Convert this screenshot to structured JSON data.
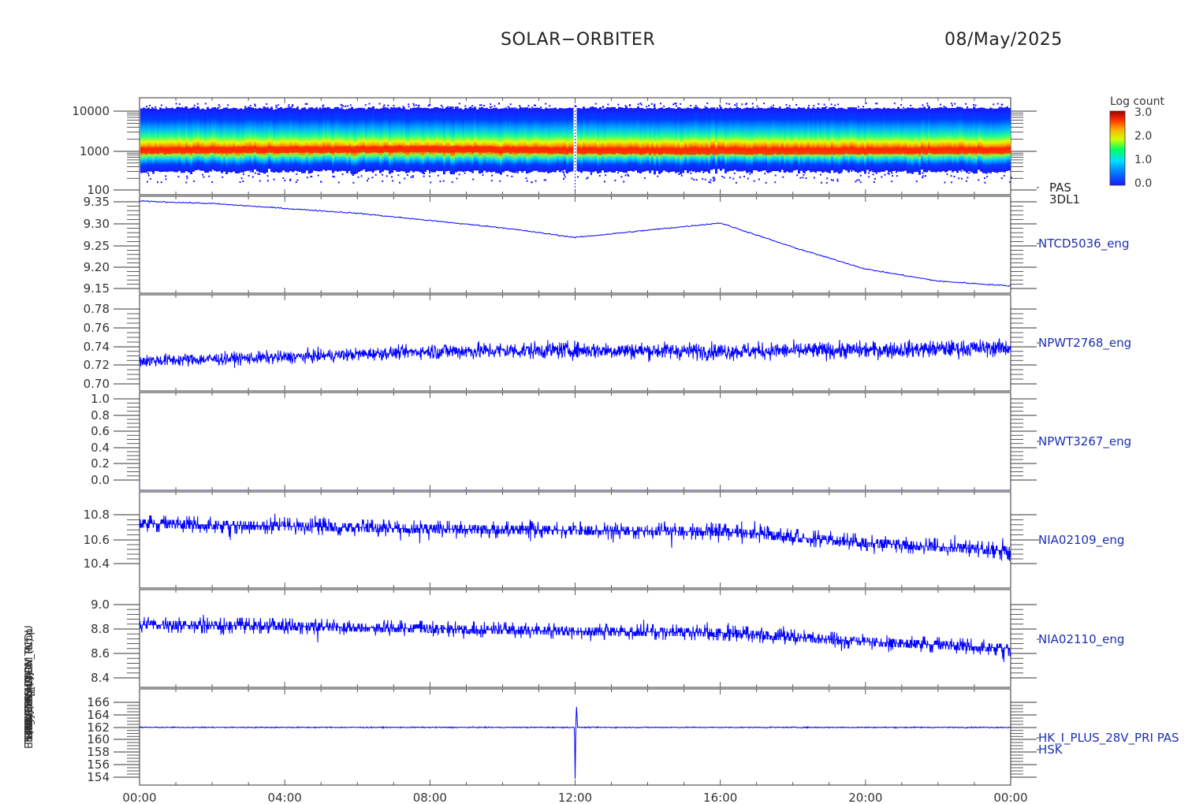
{
  "header": {
    "title": "SOLAR−ORBITER",
    "date": "08/May/2025"
  },
  "colorbar": {
    "label": "Log count",
    "ticks": [
      "3.0",
      "2.0",
      "1.0",
      "0.0"
    ],
    "range": [
      0.0,
      3.0
    ],
    "colors": [
      "#1a1aff",
      "#00d0ff",
      "#00ff80",
      "#ffff00",
      "#ff8000",
      "#e00000",
      "#b00000"
    ]
  },
  "y_axis_labels_overlapping": [
    "Energy (eV)",
    "TEMP (Deg C) Ox Temp",
    "TDS-VBIAS (V)",
    "SWA-PAS ALARM (N)",
    "RPW LFR (V)",
    "THERM (mA)",
    "(mA) HK_IMON_PCDU"
  ],
  "panels": [
    {
      "id": "spectrogram",
      "right_label": [
        "PAS",
        "3DL1"
      ],
      "ticks": [
        "10000",
        "1000",
        "100"
      ]
    },
    {
      "id": "ntcd",
      "right_label": [
        "NTCD5036_eng"
      ],
      "ticks": [
        "9.35",
        "9.30",
        "9.25",
        "9.20",
        "9.15"
      ]
    },
    {
      "id": "npwt2768",
      "right_label": [
        "NPWT2768_eng"
      ],
      "ticks": [
        "0.78",
        "0.76",
        "0.74",
        "0.72",
        "0.70"
      ]
    },
    {
      "id": "npwt3267",
      "right_label": [
        "NPWT3267_eng"
      ],
      "ticks": [
        "1.0",
        "0.8",
        "0.6",
        "0.4",
        "0.2",
        "0.0"
      ]
    },
    {
      "id": "nia02109",
      "right_label": [
        "NIA02109_eng"
      ],
      "ticks": [
        "10.8",
        "10.6",
        "10.4"
      ]
    },
    {
      "id": "nia02110",
      "right_label": [
        "NIA02110_eng"
      ],
      "ticks": [
        "9.0",
        "8.8",
        "8.6",
        "8.4"
      ]
    },
    {
      "id": "hk",
      "right_label": [
        "HK_I_PLUS_28V_PRI PAS",
        "HSK"
      ],
      "ticks": [
        "166",
        "164",
        "162",
        "160",
        "158",
        "156",
        "154"
      ]
    }
  ],
  "x_ticks": [
    "00:00",
    "04:00",
    "08:00",
    "12:00",
    "16:00",
    "20:00",
    "00:00"
  ],
  "line_color": "#0000ff",
  "chart_data": [
    {
      "type": "heatmap",
      "name": "PAS 3DL1",
      "x": "time 00:00-24:00",
      "ylabel": "Energy (eV)",
      "yscale": "log",
      "ylim": [
        100,
        15000
      ],
      "peak_energy_eV": [
        1000,
        1050,
        1100,
        1000,
        950,
        1000
      ],
      "peak_times": [
        "00:00",
        "04:00",
        "08:00",
        "12:00",
        "16:00",
        "24:00"
      ],
      "zlabel": "Log count",
      "zlim": [
        0.0,
        3.0
      ]
    },
    {
      "type": "line",
      "name": "NTCD5036_eng",
      "x": [
        "00:00",
        "02:00",
        "04:00",
        "06:00",
        "08:00",
        "10:00",
        "12:00",
        "14:00",
        "16:00",
        "18:00",
        "20:00",
        "22:00",
        "24:00"
      ],
      "y": [
        9.34,
        9.335,
        9.325,
        9.315,
        9.3,
        9.285,
        9.265,
        9.28,
        9.295,
        9.245,
        9.2,
        9.175,
        9.165
      ],
      "ylim": [
        9.15,
        9.35
      ]
    },
    {
      "type": "line",
      "name": "NPWT2768_eng",
      "x": [
        "00:00",
        "04:00",
        "08:00",
        "12:00",
        "16:00",
        "20:00",
        "24:00"
      ],
      "y_mean": [
        0.725,
        0.728,
        0.733,
        0.734,
        0.733,
        0.734,
        0.736
      ],
      "ylim": [
        0.7,
        0.78
      ]
    },
    {
      "type": "line",
      "name": "NPWT3267_eng",
      "x": [
        "00:00",
        "24:00"
      ],
      "y": [
        0.0,
        0.0
      ],
      "ylim": [
        0.0,
        1.0
      ]
    },
    {
      "type": "line",
      "name": "NIA02109_eng",
      "x": [
        "00:00",
        "04:00",
        "08:00",
        "12:00",
        "16:00",
        "20:00",
        "24:00"
      ],
      "y_mean": [
        10.72,
        10.7,
        10.68,
        10.67,
        10.66,
        10.58,
        10.52
      ],
      "ylim": [
        10.25,
        10.95
      ]
    },
    {
      "type": "line",
      "name": "NIA02110_eng",
      "x": [
        "00:00",
        "04:00",
        "08:00",
        "12:00",
        "16:00",
        "20:00",
        "24:00"
      ],
      "y_mean": [
        8.78,
        8.77,
        8.75,
        8.73,
        8.72,
        8.65,
        8.6
      ],
      "ylim": [
        8.3,
        9.05
      ]
    },
    {
      "type": "line",
      "name": "HK_I_PLUS_28V_PRI PAS",
      "x": [
        "00:00",
        "11:59",
        "12:00",
        "12:02",
        "12:04",
        "24:00"
      ],
      "y": [
        162,
        162,
        154,
        166,
        162,
        162
      ],
      "ylim": [
        153,
        168
      ]
    }
  ]
}
